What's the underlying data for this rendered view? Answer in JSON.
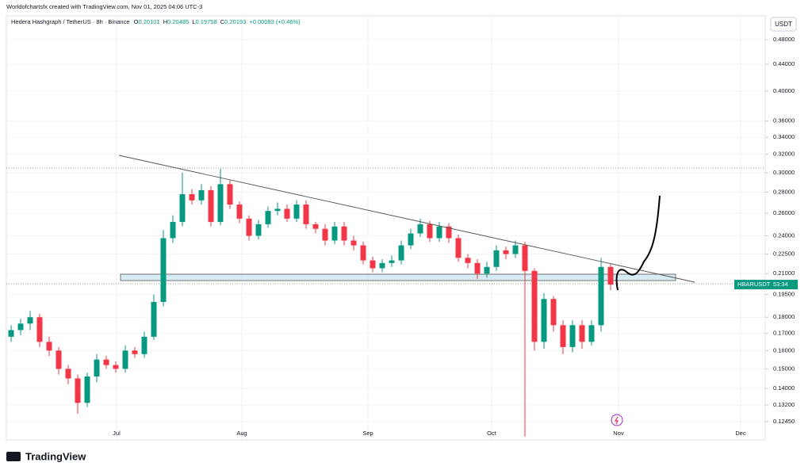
{
  "header": {
    "credit": "Worldofchartsfx created with TradingView.com, Nov 01, 2025 04:06 UTC-3"
  },
  "legend": {
    "symbol": "Hedera Hashgraph / TetherUS · 8h · Binance",
    "o_label": "O",
    "open": 0.20101,
    "h_label": "H",
    "high": 0.20485,
    "l_label": "L",
    "low": 0.19758,
    "c_label": "C",
    "close": 0.20193,
    "change": "+0.00093 (+0.46%)"
  },
  "currency": "USDT",
  "countdown": "53:34",
  "footer": {
    "brand": "TradingView"
  },
  "chart_data": {
    "type": "candlestick",
    "log_scale": true,
    "grid": true,
    "series": [
      {
        "name": "HBARUSDT",
        "up_color": "#089981",
        "down_color": "#f23645",
        "open": [
          0.168,
          0.172,
          0.176,
          0.18,
          0.165,
          0.16,
          0.15,
          0.145,
          0.133,
          0.146,
          0.155,
          0.152,
          0.15,
          0.16,
          0.158,
          0.168,
          0.19,
          0.238,
          0.252,
          0.278,
          0.272,
          0.282,
          0.252,
          0.288,
          0.268,
          0.255,
          0.24,
          0.25,
          0.262,
          0.264,
          0.255,
          0.268,
          0.25,
          0.246,
          0.236,
          0.248,
          0.236,
          0.232,
          0.22,
          0.214,
          0.218,
          0.22,
          0.232,
          0.242,
          0.25,
          0.238,
          0.248,
          0.238,
          0.222,
          0.218,
          0.21,
          0.215,
          0.228,
          0.225,
          0.232,
          0.212,
          0.165,
          0.192,
          0.175,
          0.162,
          0.175,
          0.165,
          0.175,
          0.215
        ],
        "high": [
          0.175,
          0.179,
          0.184,
          0.182,
          0.168,
          0.162,
          0.152,
          0.147,
          0.148,
          0.158,
          0.157,
          0.154,
          0.163,
          0.162,
          0.171,
          0.195,
          0.245,
          0.258,
          0.3,
          0.283,
          0.288,
          0.286,
          0.304,
          0.292,
          0.271,
          0.258,
          0.254,
          0.266,
          0.27,
          0.268,
          0.272,
          0.272,
          0.252,
          0.25,
          0.252,
          0.252,
          0.24,
          0.235,
          0.223,
          0.221,
          0.224,
          0.236,
          0.246,
          0.255,
          0.253,
          0.252,
          0.251,
          0.241,
          0.225,
          0.221,
          0.219,
          0.232,
          0.231,
          0.236,
          0.235,
          0.214,
          0.196,
          0.194,
          0.178,
          0.178,
          0.178,
          0.178,
          0.222,
          0.217
        ],
        "low": [
          0.165,
          0.169,
          0.172,
          0.162,
          0.157,
          0.147,
          0.142,
          0.128,
          0.131,
          0.143,
          0.15,
          0.148,
          0.148,
          0.156,
          0.156,
          0.166,
          0.187,
          0.234,
          0.248,
          0.268,
          0.268,
          0.248,
          0.249,
          0.264,
          0.251,
          0.236,
          0.237,
          0.247,
          0.258,
          0.252,
          0.252,
          0.246,
          0.242,
          0.232,
          0.233,
          0.232,
          0.228,
          0.217,
          0.211,
          0.211,
          0.215,
          0.217,
          0.229,
          0.239,
          0.235,
          0.235,
          0.234,
          0.219,
          0.214,
          0.206,
          0.207,
          0.212,
          0.221,
          0.222,
          0.118,
          0.16,
          0.161,
          0.171,
          0.158,
          0.159,
          0.161,
          0.163,
          0.171,
          0.198
        ],
        "close": [
          0.172,
          0.176,
          0.18,
          0.165,
          0.16,
          0.15,
          0.145,
          0.133,
          0.146,
          0.155,
          0.152,
          0.15,
          0.16,
          0.158,
          0.168,
          0.19,
          0.238,
          0.252,
          0.278,
          0.272,
          0.282,
          0.252,
          0.288,
          0.268,
          0.255,
          0.24,
          0.25,
          0.262,
          0.264,
          0.255,
          0.268,
          0.25,
          0.246,
          0.236,
          0.248,
          0.236,
          0.232,
          0.22,
          0.214,
          0.218,
          0.22,
          0.232,
          0.242,
          0.25,
          0.238,
          0.248,
          0.238,
          0.222,
          0.218,
          0.21,
          0.215,
          0.228,
          0.225,
          0.232,
          0.212,
          0.165,
          0.192,
          0.175,
          0.162,
          0.175,
          0.165,
          0.175,
          0.215,
          0.202
        ]
      }
    ],
    "xlim": [
      -0.5,
      79.25
    ],
    "xticks": [
      {
        "value": 11.08,
        "label": "Jul"
      },
      {
        "value": 24.25,
        "label": "Aug"
      },
      {
        "value": 37.5,
        "label": "Sep"
      },
      {
        "value": 50.5,
        "label": "Oct"
      },
      {
        "value": 63.83,
        "label": "Nov"
      },
      {
        "value": 76.67,
        "label": "Dec"
      }
    ],
    "ylim": [
      0.1167,
      0.522
    ],
    "yticks": [
      {
        "value": 0.48,
        "label": "0.48000"
      },
      {
        "value": 0.44,
        "label": "0.44000"
      },
      {
        "value": 0.4,
        "label": "0.40000"
      },
      {
        "value": 0.36,
        "label": "0.36000"
      },
      {
        "value": 0.34,
        "label": "0.34000"
      },
      {
        "value": 0.32,
        "label": "0.32000"
      },
      {
        "value": 0.3,
        "label": "0.30000"
      },
      {
        "value": 0.28,
        "label": "0.28000"
      },
      {
        "value": 0.26,
        "label": "0.26000"
      },
      {
        "value": 0.24,
        "label": "0.24000"
      },
      {
        "value": 0.225,
        "label": "0.22500"
      },
      {
        "value": 0.21,
        "label": "0.21000"
      },
      {
        "value": 0.195,
        "label": "0.19500"
      },
      {
        "value": 0.18,
        "label": "0.18000"
      },
      {
        "value": 0.17,
        "label": "0.17000"
      },
      {
        "value": 0.16,
        "label": "0.16000"
      },
      {
        "value": 0.15,
        "label": "0.15000"
      },
      {
        "value": 0.14,
        "label": "0.14000"
      },
      {
        "value": 0.132,
        "label": "0.13200"
      },
      {
        "value": 0.1245,
        "label": "0.12450"
      }
    ]
  }
}
